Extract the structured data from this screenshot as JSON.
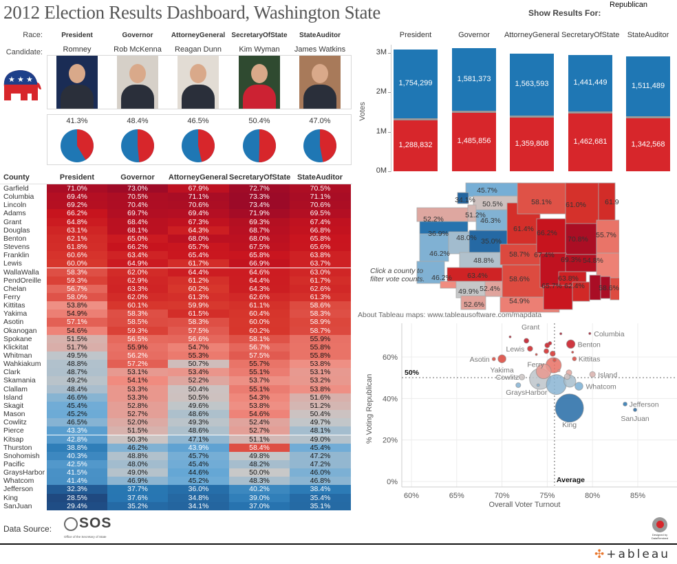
{
  "title": "2012 Election Results Dashboard, Washington State",
  "filter": {
    "label": "Show Results For:",
    "value": "Republican"
  },
  "colors": {
    "republican": "#d7262b",
    "democrat": "#1f77b4",
    "other": "#999999"
  },
  "header": {
    "race_label": "Race:",
    "candidate_label": "Candidate:",
    "races": [
      {
        "race": "President",
        "candidate": "Romney",
        "pct_label": "41.3%",
        "pct": 41.3
      },
      {
        "race": "Governor",
        "candidate": "Rob McKenna",
        "pct_label": "48.4%",
        "pct": 48.4
      },
      {
        "race": "AttorneyGeneral",
        "candidate": "Reagan Dunn",
        "pct_label": "46.5%",
        "pct": 46.5
      },
      {
        "race": "SecretaryOfState",
        "candidate": "Kim Wyman",
        "pct_label": "50.4%",
        "pct": 50.4
      },
      {
        "race": "StateAuditor",
        "candidate": "James Watkins",
        "pct_label": "47.0%",
        "pct": 47.0
      }
    ]
  },
  "chart_data": [
    {
      "type": "bar",
      "stacked": true,
      "categories": [
        "President",
        "Governor",
        "AttorneyGeneral",
        "SecretaryOfState",
        "StateAuditor"
      ],
      "series": [
        {
          "party": "republican",
          "values": [
            1288832,
            1485856,
            1359808,
            1462681,
            1342568
          ],
          "labels": [
            "1,288,832",
            "1,485,856",
            "1,359,808",
            "1,462,681",
            "1,342,568"
          ]
        },
        {
          "party": "democrat",
          "values": [
            1754299,
            1581373,
            1563593,
            1441449,
            1511489
          ],
          "labels": [
            "1,754,299",
            "1,581,373",
            "1,563,593",
            "1,441,449",
            "1,511,489"
          ]
        }
      ],
      "ylabel": "Votes",
      "yticks": [
        "0M",
        "1M",
        "2M",
        "3M"
      ],
      "ylim": [
        0,
        3200000
      ]
    },
    {
      "type": "scatter",
      "xlabel": "Overall Voter Turnout",
      "ylabel": "% Voting Republican",
      "xticks": [
        "60%",
        "65%",
        "70%",
        "75%",
        "80%",
        "85%"
      ],
      "yticks": [
        "0%",
        "20%",
        "40%",
        "60%"
      ],
      "xlim": [
        59.5,
        88.5
      ],
      "ylim": [
        -1,
        75
      ],
      "grid": true,
      "ref_lines": [
        {
          "axis": "y",
          "value": 50,
          "label": "50%"
        },
        {
          "axis": "x",
          "value": 75.8,
          "label": "Average"
        }
      ],
      "points": [
        {
          "name": "King",
          "x": 77.45,
          "y": 35.4,
          "size": 100
        },
        {
          "name": "Jefferson",
          "x": 83.6,
          "y": 37.3,
          "size": 2
        },
        {
          "name": "SanJuan",
          "x": 84.7,
          "y": 34.5,
          "size": 1.5
        },
        {
          "name": "Whatcom",
          "x": 78.5,
          "y": 45.9,
          "size": 8
        },
        {
          "name": "Island",
          "x": 80.0,
          "y": 51.6,
          "size": 4
        },
        {
          "name": "Columbia",
          "x": 79.7,
          "y": 71.3,
          "size": 0.6
        },
        {
          "name": "Benton",
          "x": 77.6,
          "y": 66.2,
          "size": 9
        },
        {
          "name": "Kittitas",
          "x": 78.0,
          "y": 59.1,
          "size": 2
        },
        {
          "name": "Grant",
          "x": 76.5,
          "y": 71.2,
          "size": 0.6
        },
        {
          "name": "Lewis",
          "x": 73.1,
          "y": 64.0,
          "size": 3.5
        },
        {
          "name": "Asotin",
          "x": 69.1,
          "y": 59.0,
          "size": 1.5
        },
        {
          "name": "Yakima",
          "x": 70.0,
          "y": 59.1,
          "size": 8
        },
        {
          "name": "Ferry",
          "x": 73.8,
          "y": 61.2,
          "size": 0.5
        },
        {
          "name": "Cowlitz",
          "x": 72.2,
          "y": 50.3,
          "size": 4
        },
        {
          "name": "GraysHarbor",
          "x": 71.8,
          "y": 46.4,
          "size": 3
        },
        {
          "name": "",
          "x": 70.9,
          "y": 69.7,
          "size": 0.5
        },
        {
          "name": "",
          "x": 72.7,
          "y": 67.8,
          "size": 3
        },
        {
          "name": "",
          "x": 75.0,
          "y": 65.6,
          "size": 3
        },
        {
          "name": "",
          "x": 75.3,
          "y": 66.6,
          "size": 1.5
        },
        {
          "name": "",
          "x": 74.9,
          "y": 62.8,
          "size": 3
        },
        {
          "name": "",
          "x": 75.6,
          "y": 61.6,
          "size": 3.5
        },
        {
          "name": "",
          "x": 75.8,
          "y": 58.5,
          "size": 1.5
        },
        {
          "name": "",
          "x": 77.8,
          "y": 62.3,
          "size": 0.6
        },
        {
          "name": "",
          "x": 75.7,
          "y": 56.0,
          "size": 30
        },
        {
          "name": "",
          "x": 74.6,
          "y": 53.1,
          "size": 28
        },
        {
          "name": "",
          "x": 74.2,
          "y": 49.4,
          "size": 55
        },
        {
          "name": "",
          "x": 76.0,
          "y": 46.7,
          "size": 50
        },
        {
          "name": "",
          "x": 77.5,
          "y": 48.3,
          "size": 18
        },
        {
          "name": "",
          "x": 77.4,
          "y": 52.4,
          "size": 4
        },
        {
          "name": "",
          "x": 77.2,
          "y": 50.5,
          "size": 4
        },
        {
          "name": "",
          "x": 74.0,
          "y": 46.4,
          "size": 1
        },
        {
          "name": "",
          "x": 76.3,
          "y": 53.4,
          "size": 0.6
        }
      ]
    },
    {
      "type": "heatmap",
      "row_header": "County",
      "columns": [
        "President",
        "Governor",
        "AttorneyGeneral",
        "SecretaryOfState",
        "StateAuditor"
      ],
      "rows": [
        {
          "county": "Garfield",
          "values": [
            "71.0%",
            "73.0%",
            "67.9%",
            "72.7%",
            "70.5%"
          ]
        },
        {
          "county": "Columbia",
          "values": [
            "69.4%",
            "70.5%",
            "71.1%",
            "73.3%",
            "71.1%"
          ]
        },
        {
          "county": "Lincoln",
          "values": [
            "69.2%",
            "70.4%",
            "70.6%",
            "73.4%",
            "70.6%"
          ]
        },
        {
          "county": "Adams",
          "values": [
            "66.2%",
            "69.7%",
            "69.4%",
            "71.9%",
            "69.5%"
          ]
        },
        {
          "county": "Grant",
          "values": [
            "64.8%",
            "68.4%",
            "67.3%",
            "69.3%",
            "67.4%"
          ]
        },
        {
          "county": "Douglas",
          "values": [
            "63.1%",
            "68.1%",
            "64.3%",
            "68.7%",
            "66.8%"
          ]
        },
        {
          "county": "Benton",
          "values": [
            "62.1%",
            "65.0%",
            "68.0%",
            "68.0%",
            "65.8%"
          ]
        },
        {
          "county": "Stevens",
          "values": [
            "61.8%",
            "66.2%",
            "65.7%",
            "67.5%",
            "65.6%"
          ]
        },
        {
          "county": "Franklin",
          "values": [
            "60.6%",
            "63.4%",
            "65.4%",
            "65.8%",
            "63.8%"
          ]
        },
        {
          "county": "Lewis",
          "values": [
            "60.0%",
            "64.9%",
            "61.7%",
            "66.9%",
            "63.7%"
          ]
        },
        {
          "county": "WallaWalla",
          "values": [
            "58.3%",
            "62.0%",
            "64.4%",
            "64.6%",
            "63.0%"
          ]
        },
        {
          "county": "PendOreille",
          "values": [
            "59.3%",
            "62.9%",
            "61.2%",
            "64.4%",
            "61.7%"
          ]
        },
        {
          "county": "Chelan",
          "values": [
            "56.7%",
            "63.3%",
            "60.2%",
            "64.3%",
            "62.6%"
          ]
        },
        {
          "county": "Ferry",
          "values": [
            "58.0%",
            "62.0%",
            "61.3%",
            "62.6%",
            "61.3%"
          ]
        },
        {
          "county": "Kittitas",
          "values": [
            "53.8%",
            "60.1%",
            "59.9%",
            "61.1%",
            "58.6%"
          ]
        },
        {
          "county": "Yakima",
          "values": [
            "54.9%",
            "58.3%",
            "61.5%",
            "60.4%",
            "58.3%"
          ]
        },
        {
          "county": "Asotin",
          "values": [
            "57.1%",
            "58.5%",
            "58.3%",
            "60.0%",
            "58.9%"
          ]
        },
        {
          "county": "Okanogan",
          "values": [
            "54.6%",
            "59.3%",
            "57.5%",
            "60.2%",
            "58.7%"
          ]
        },
        {
          "county": "Spokane",
          "values": [
            "51.5%",
            "56.5%",
            "56.6%",
            "58.1%",
            "55.9%"
          ]
        },
        {
          "county": "Klickitat",
          "values": [
            "51.7%",
            "55.9%",
            "54.7%",
            "56.7%",
            "55.8%"
          ]
        },
        {
          "county": "Whitman",
          "values": [
            "49.5%",
            "56.2%",
            "55.3%",
            "57.5%",
            "55.8%"
          ]
        },
        {
          "county": "Wahkiakum",
          "values": [
            "48.8%",
            "57.2%",
            "50.7%",
            "55.7%",
            "53.8%"
          ]
        },
        {
          "county": "Clark",
          "values": [
            "48.7%",
            "53.1%",
            "53.4%",
            "55.1%",
            "53.1%"
          ]
        },
        {
          "county": "Skamania",
          "values": [
            "49.2%",
            "54.1%",
            "52.2%",
            "53.7%",
            "53.2%"
          ]
        },
        {
          "county": "Clallam",
          "values": [
            "48.4%",
            "53.3%",
            "50.4%",
            "55.1%",
            "53.8%"
          ]
        },
        {
          "county": "Island",
          "values": [
            "46.6%",
            "53.3%",
            "50.5%",
            "54.3%",
            "51.6%"
          ]
        },
        {
          "county": "Skagit",
          "values": [
            "45.4%",
            "52.8%",
            "49.6%",
            "53.8%",
            "51.2%"
          ]
        },
        {
          "county": "Mason",
          "values": [
            "45.2%",
            "52.7%",
            "48.6%",
            "54.6%",
            "50.4%"
          ]
        },
        {
          "county": "Cowlitz",
          "values": [
            "46.5%",
            "52.0%",
            "49.3%",
            "52.4%",
            "49.7%"
          ]
        },
        {
          "county": "Pierce",
          "values": [
            "43.3%",
            "51.5%",
            "48.6%",
            "52.7%",
            "48.1%"
          ]
        },
        {
          "county": "Kitsap",
          "values": [
            "42.8%",
            "50.3%",
            "47.1%",
            "51.1%",
            "49.0%"
          ]
        },
        {
          "county": "Thurston",
          "values": [
            "38.8%",
            "46.2%",
            "43.9%",
            "58.4%",
            "45.4%"
          ]
        },
        {
          "county": "Snohomish",
          "values": [
            "40.3%",
            "48.8%",
            "45.7%",
            "49.8%",
            "47.2%"
          ]
        },
        {
          "county": "Pacific",
          "values": [
            "42.5%",
            "48.0%",
            "45.4%",
            "48.2%",
            "47.2%"
          ]
        },
        {
          "county": "GraysHarbor",
          "values": [
            "41.5%",
            "49.0%",
            "44.6%",
            "50.0%",
            "46.0%"
          ]
        },
        {
          "county": "Whatcom",
          "values": [
            "41.4%",
            "46.9%",
            "45.2%",
            "48.3%",
            "46.8%"
          ]
        },
        {
          "county": "Jefferson",
          "values": [
            "32.3%",
            "37.7%",
            "36.0%",
            "40.2%",
            "38.4%"
          ]
        },
        {
          "county": "King",
          "values": [
            "28.5%",
            "37.6%",
            "34.8%",
            "39.0%",
            "35.4%"
          ]
        },
        {
          "county": "SanJuan",
          "values": [
            "29.4%",
            "35.2%",
            "34.1%",
            "37.0%",
            "35.1%"
          ]
        }
      ]
    }
  ],
  "map": {
    "hint": "Click a county to filter vote counts.",
    "attribution": "About Tableau maps: www.tableausoftware.com/mapdata",
    "labels": [
      "45.7%",
      "34.1%",
      "50.5%",
      "52.2%",
      "51.2%",
      "46.3%",
      "36.9%",
      "48.0%",
      "35.0%",
      "46.2%",
      "48.8%",
      "58.7%",
      "61.4%",
      "66.2%",
      "67.4%",
      "70.8%",
      "69.3%",
      "55.7%",
      "54.8%",
      "58.1%",
      "61.0%",
      "61.9%",
      "46.2%",
      "63.4%",
      "58.6%",
      "63.8%",
      "62.4%",
      "65.7%",
      "58.6%",
      "49.9%",
      "52.4%",
      "52.6%",
      "54.9%"
    ]
  },
  "footer": {
    "data_source_label": "Data Source:",
    "sos_logo_text": "SOS",
    "sos_caption": "Office of the Secretary of State",
    "designer_badge": "Designed by DataRemixed",
    "tableau_logo": "+ab|eau"
  }
}
